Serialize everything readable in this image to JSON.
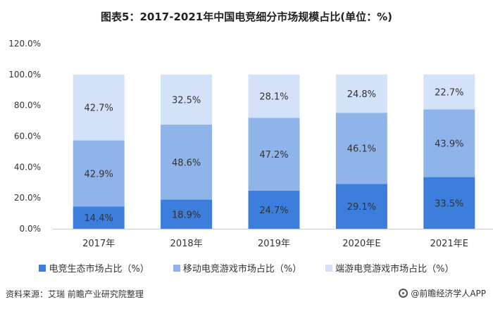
{
  "chart_data": {
    "type": "bar",
    "stacked": true,
    "title": "图表5：2017-2021年中国电竞细分市场规模占比(单位：%)",
    "categories": [
      "2017年",
      "2018年",
      "2019年",
      "2020年E",
      "2021年E"
    ],
    "series": [
      {
        "name": "电竞生态市场占比（%）",
        "values": [
          14.4,
          18.9,
          24.7,
          29.1,
          33.5
        ],
        "labels": [
          "14.4%",
          "18.9%",
          "24.7%",
          "29.1%",
          "33.5%"
        ],
        "color": "#3d7ddc"
      },
      {
        "name": "移动电竞游戏市场占比（%）",
        "values": [
          42.9,
          48.6,
          47.2,
          46.1,
          43.9
        ],
        "labels": [
          "42.9%",
          "48.6%",
          "47.2%",
          "46.1%",
          "43.9%"
        ],
        "color": "#8fb4ea"
      },
      {
        "name": "端游电竞游戏市场占比（%）",
        "values": [
          42.7,
          32.5,
          28.1,
          24.8,
          22.7
        ],
        "labels": [
          "42.7%",
          "32.5%",
          "28.1%",
          "24.8%",
          "22.7%"
        ],
        "color": "#d3e2f8"
      }
    ],
    "y_ticks": [
      "0.0%",
      "20.0%",
      "40.0%",
      "60.0%",
      "80.0%",
      "100.0%",
      "120.0%"
    ],
    "ylim": [
      0,
      120
    ],
    "grid": false,
    "legend_position": "bottom"
  },
  "footer": {
    "source": "资料来源：艾瑞 前瞻产业研究院整理",
    "brand": "@前瞻经济学人APP"
  }
}
